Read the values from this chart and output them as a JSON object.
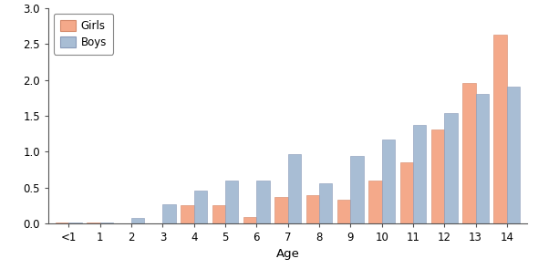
{
  "categories": [
    "<1",
    "1",
    "2",
    "3",
    "4",
    "5",
    "6",
    "7",
    "8",
    "9",
    "10",
    "11",
    "12",
    "13",
    "14"
  ],
  "girls": [
    0.01,
    0.01,
    0.0,
    0.0,
    0.25,
    0.25,
    0.09,
    0.37,
    0.39,
    0.33,
    0.59,
    0.85,
    1.31,
    1.95,
    2.63
  ],
  "boys": [
    0.01,
    0.01,
    0.07,
    0.26,
    0.45,
    0.59,
    0.59,
    0.97,
    0.56,
    0.94,
    1.17,
    1.37,
    1.53,
    1.8,
    1.9
  ],
  "girls_color": "#F4A98A",
  "boys_color": "#A8BDD4",
  "girls_edge": "#d4896a",
  "boys_edge": "#8899b8",
  "xlabel": "Age",
  "ylim": [
    0,
    3.0
  ],
  "yticks": [
    0.0,
    0.5,
    1.0,
    1.5,
    2.0,
    2.5,
    3.0
  ],
  "bar_width": 0.42,
  "legend_labels": [
    "Girls",
    "Boys"
  ],
  "background_color": "#ffffff",
  "tick_fontsize": 8.5,
  "label_fontsize": 9.5
}
